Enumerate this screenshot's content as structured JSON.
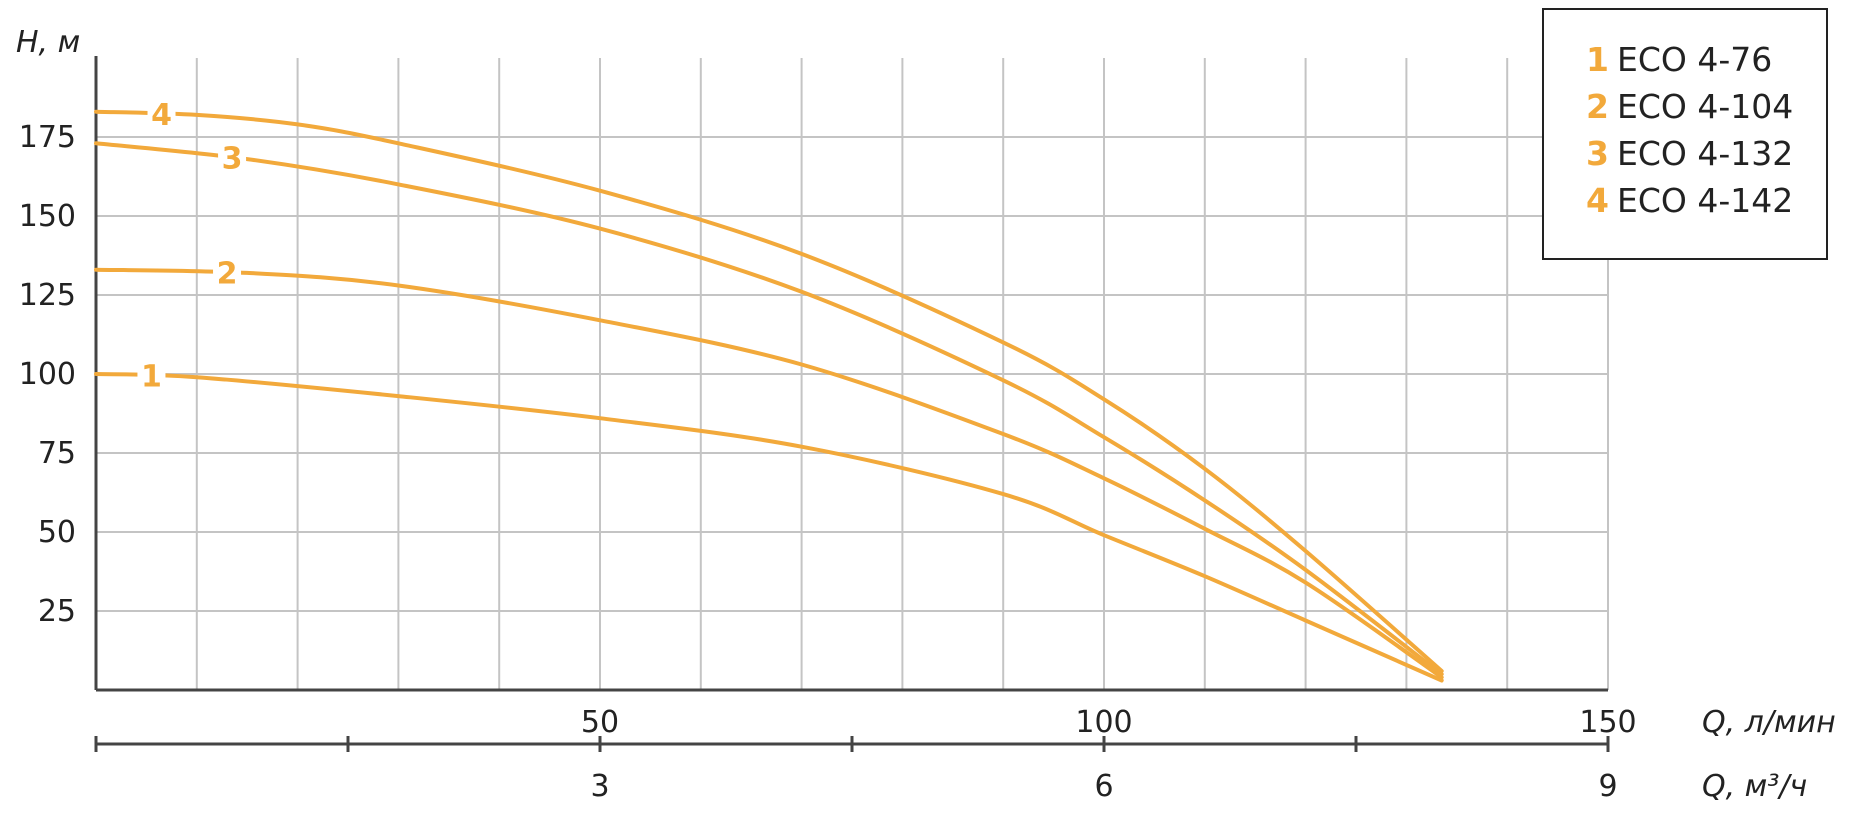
{
  "chart_data": {
    "type": "line",
    "ylabel": "H, м",
    "xlabel_primary": "Q, л/мин",
    "xlabel_secondary": "Q, м³/ч",
    "ylim": [
      0,
      200
    ],
    "xlim": [
      0,
      150
    ],
    "y_ticks": [
      25,
      50,
      75,
      100,
      125,
      150,
      175
    ],
    "x_ticks_primary": [
      50,
      100,
      150
    ],
    "x_ticks_secondary": [
      3,
      6,
      9
    ],
    "grid": true,
    "legend_position": "top-right",
    "accent_color": "#f2a93b",
    "series": [
      {
        "id": "1",
        "name": "ECO 4-76",
        "x": [
          0,
          10,
          30,
          50,
          70,
          90,
          100,
          110,
          120,
          133.5
        ],
        "y": [
          100,
          99,
          93,
          86,
          77,
          62,
          49,
          36,
          22,
          3
        ]
      },
      {
        "id": "2",
        "name": "ECO 4-104",
        "x": [
          0,
          15,
          30,
          50,
          70,
          90,
          100,
          110,
          120,
          133.5
        ],
        "y": [
          133,
          132,
          128,
          117,
          103,
          81,
          67,
          51,
          34,
          4
        ]
      },
      {
        "id": "3",
        "name": "ECO 4-132",
        "x": [
          0,
          15,
          30,
          50,
          70,
          90,
          100,
          110,
          120,
          133.5
        ],
        "y": [
          173,
          168,
          160,
          146,
          126,
          98,
          80,
          60,
          38,
          5
        ]
      },
      {
        "id": "4",
        "name": "ECO 4-142",
        "x": [
          0,
          10,
          20,
          30,
          50,
          70,
          90,
          100,
          110,
          120,
          133.5
        ],
        "y": [
          183,
          182,
          179,
          173,
          158,
          138,
          110,
          92,
          70,
          44,
          6
        ]
      }
    ]
  }
}
